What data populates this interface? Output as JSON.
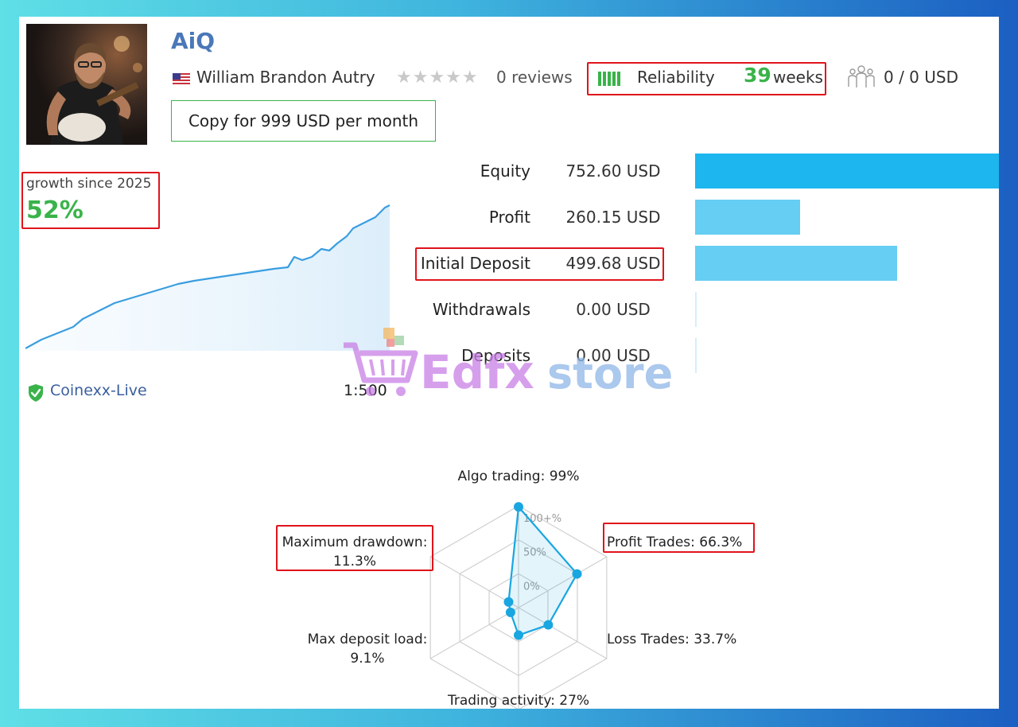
{
  "profile": {
    "title": "AiQ",
    "author": "William Brandon Autry",
    "rating_stars": 0,
    "reviews": "0 reviews",
    "reliability_label": "Reliability",
    "reliability_weeks": "39",
    "reliability_unit": "weeks",
    "subscribers": "0 / 0 USD",
    "copy_button": "Copy for 999 USD per month"
  },
  "growth": {
    "label": "growth since 2025",
    "value": "52%"
  },
  "account": {
    "broker": "Coinexx-Live",
    "leverage": "1:500"
  },
  "stats": [
    {
      "label": "Equity",
      "value": "752.60 USD",
      "amount": 752.6
    },
    {
      "label": "Profit",
      "value": "260.15 USD",
      "amount": 260.15
    },
    {
      "label": "Initial Deposit",
      "value": "499.68 USD",
      "amount": 499.68
    },
    {
      "label": "Withdrawals",
      "value": "0.00 USD",
      "amount": 0
    },
    {
      "label": "Deposits",
      "value": "0.00 USD",
      "amount": 0
    }
  ],
  "radar": {
    "scale_labels": [
      "100+%",
      "50%",
      "0%"
    ],
    "axes": [
      {
        "name": "Algo trading",
        "label": "Algo trading: 99%",
        "value": 99
      },
      {
        "name": "Profit Trades",
        "label": "Profit Trades: 66.3%",
        "value": 66.3
      },
      {
        "name": "Loss Trades",
        "label": "Loss Trades: 33.7%",
        "value": 33.7
      },
      {
        "name": "Trading activity",
        "label": "Trading activity: 27%",
        "value": 27
      },
      {
        "name": "Max deposit load",
        "label_line1": "Max deposit load:",
        "label_line2": "9.1%",
        "value": 9.1
      },
      {
        "name": "Maximum drawdown",
        "label_line1": "Maximum drawdown:",
        "label_line2": "11.3%",
        "value": 11.3
      }
    ]
  },
  "watermark": {
    "part1": "Edfx",
    "part2": "store"
  },
  "colors": {
    "accent_green": "#3ab34a",
    "bar_equity": "#1db6ee",
    "bar_other": "#66cdf3",
    "highlight_red": "#e0141b",
    "radar_line": "#1aa6e0"
  },
  "icons": {
    "flag": "us-flag-icon",
    "people": "people-icon",
    "broker": "shield-check-icon"
  }
}
